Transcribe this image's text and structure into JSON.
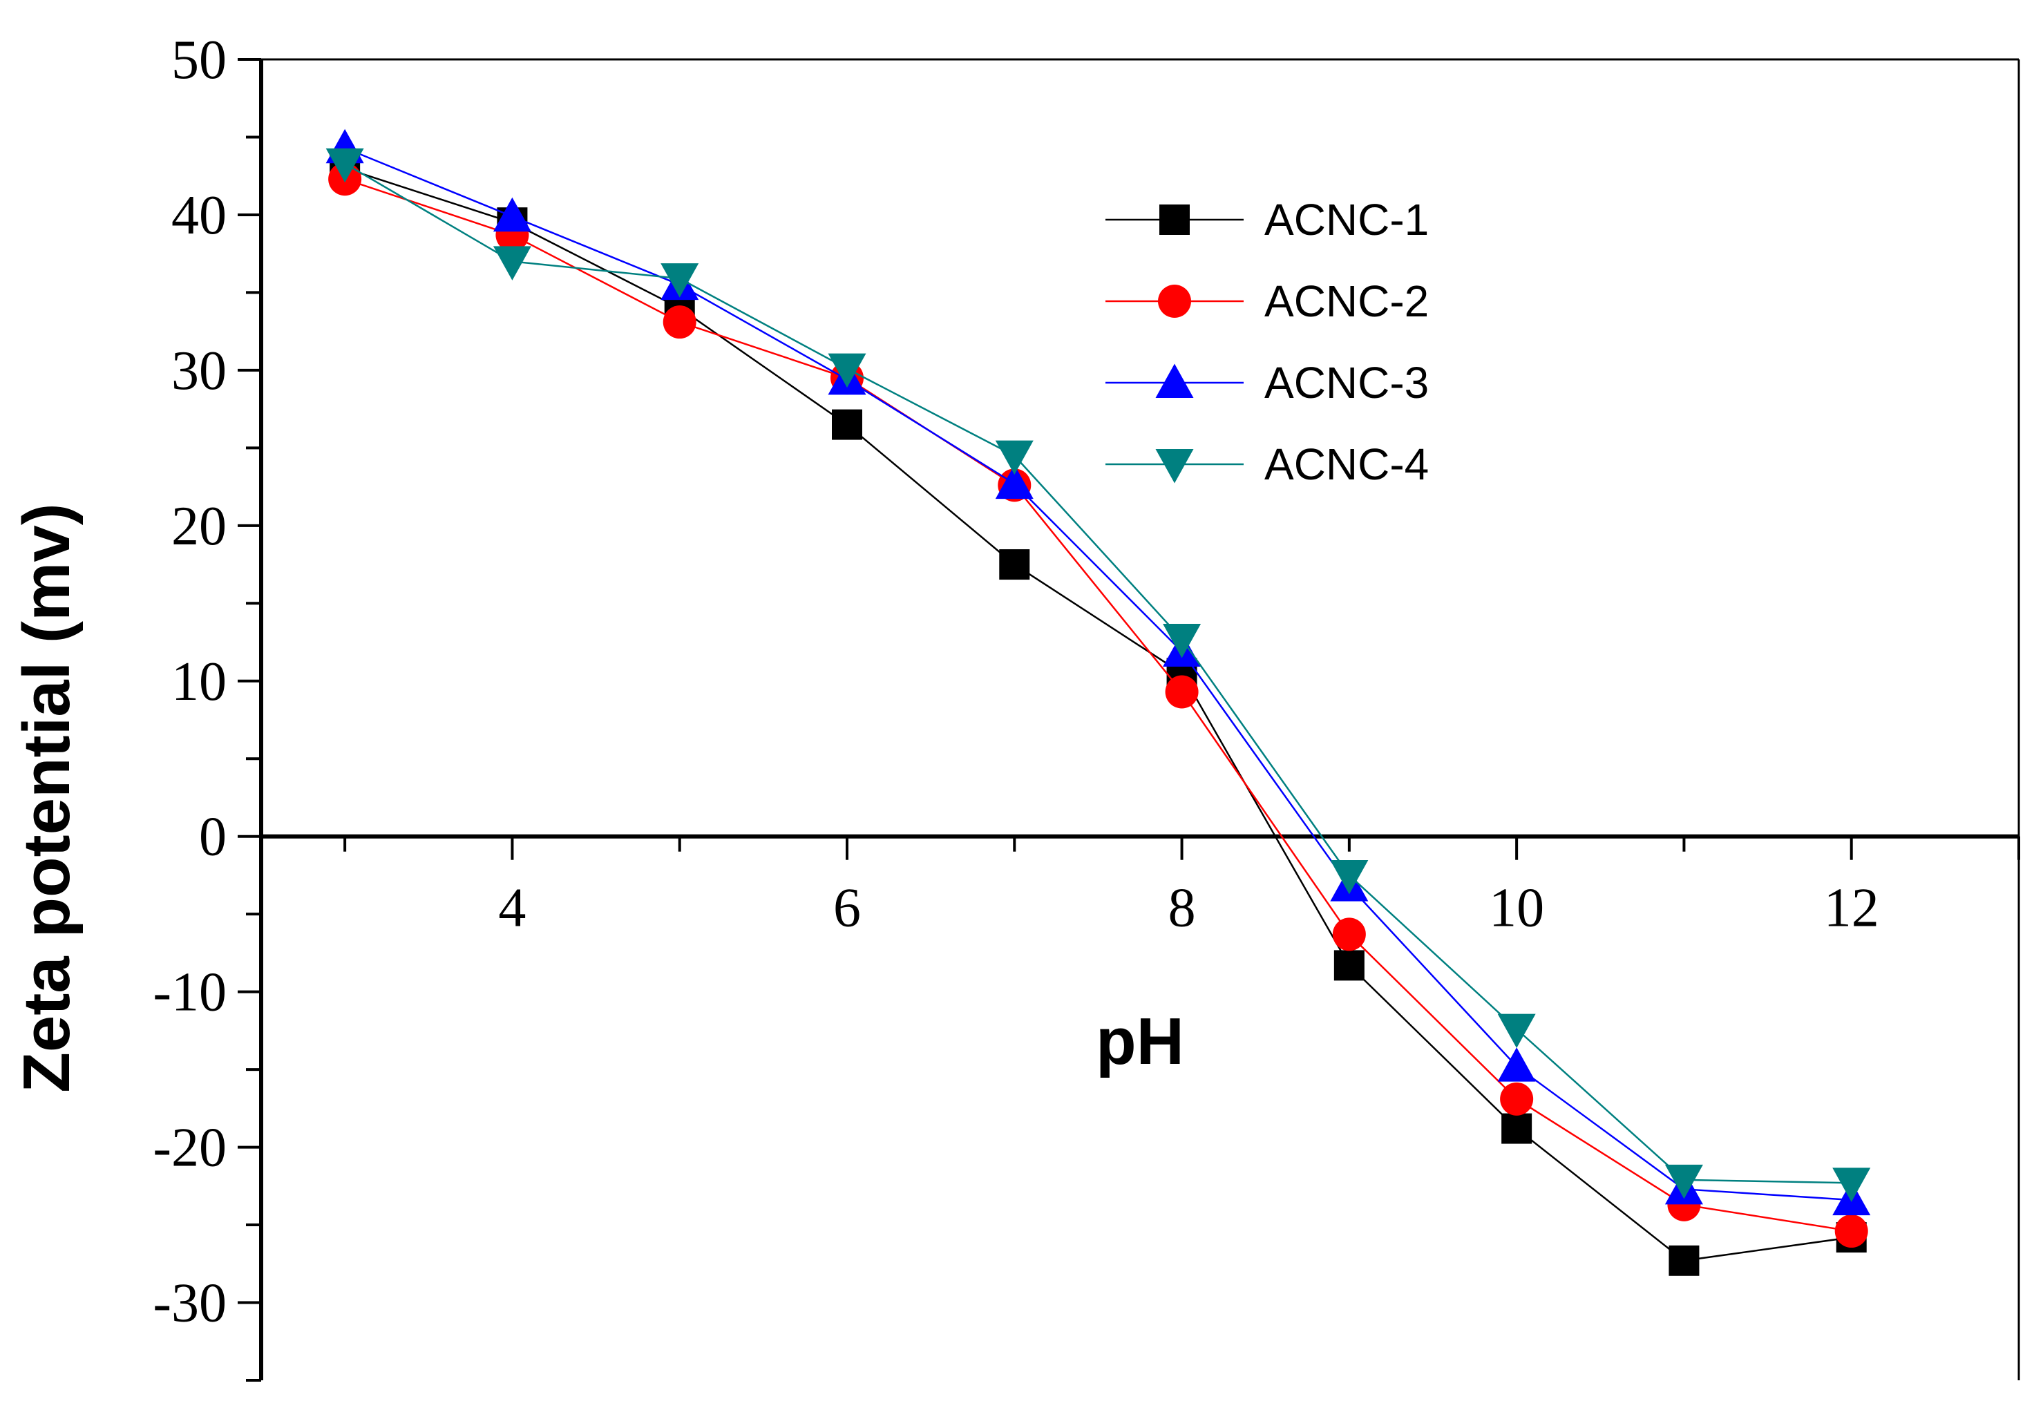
{
  "chart_data": {
    "type": "line",
    "title": "",
    "xlabel": "pH",
    "ylabel": "Zeta potential (mv)",
    "xlim": [
      2.5,
      13.0
    ],
    "ylim": [
      -35,
      50
    ],
    "xticks": [
      4,
      6,
      8,
      10,
      12
    ],
    "xtick_labels": [
      "4",
      "6",
      "8",
      "10",
      "12"
    ],
    "yticks": [
      50,
      40,
      30,
      20,
      10,
      0,
      -10,
      -20,
      -30
    ],
    "ytick_labels": [
      "50",
      "40",
      "30",
      "20",
      "10",
      "0",
      "-10",
      "-20",
      "-30"
    ],
    "x": [
      3,
      4,
      5,
      6,
      7,
      8,
      9,
      10,
      11,
      12
    ],
    "series": [
      {
        "name": "ACNC-1",
        "marker": "square",
        "color": "#000000",
        "values": [
          43.0,
          39.5,
          34.0,
          26.5,
          17.5,
          10.5,
          -8.3,
          -18.8,
          -27.3,
          -25.8
        ]
      },
      {
        "name": "ACNC-2",
        "marker": "circle",
        "color": "#ff0000",
        "values": [
          42.3,
          38.7,
          33.1,
          29.5,
          22.6,
          9.3,
          -6.3,
          -16.9,
          -23.7,
          -25.4
        ]
      },
      {
        "name": "ACNC-3",
        "marker": "triangle-up",
        "color": "#0000ff",
        "values": [
          44.3,
          39.9,
          35.5,
          29.4,
          22.7,
          11.9,
          -3.2,
          -14.8,
          -22.7,
          -23.4
        ]
      },
      {
        "name": "ACNC-4",
        "marker": "triangle-down",
        "color": "#008080",
        "values": [
          43.3,
          37.0,
          35.9,
          30.1,
          24.5,
          12.7,
          -2.5,
          -12.4,
          -22.1,
          -22.3
        ]
      }
    ],
    "legend_position": "top-right",
    "grid": false
  }
}
